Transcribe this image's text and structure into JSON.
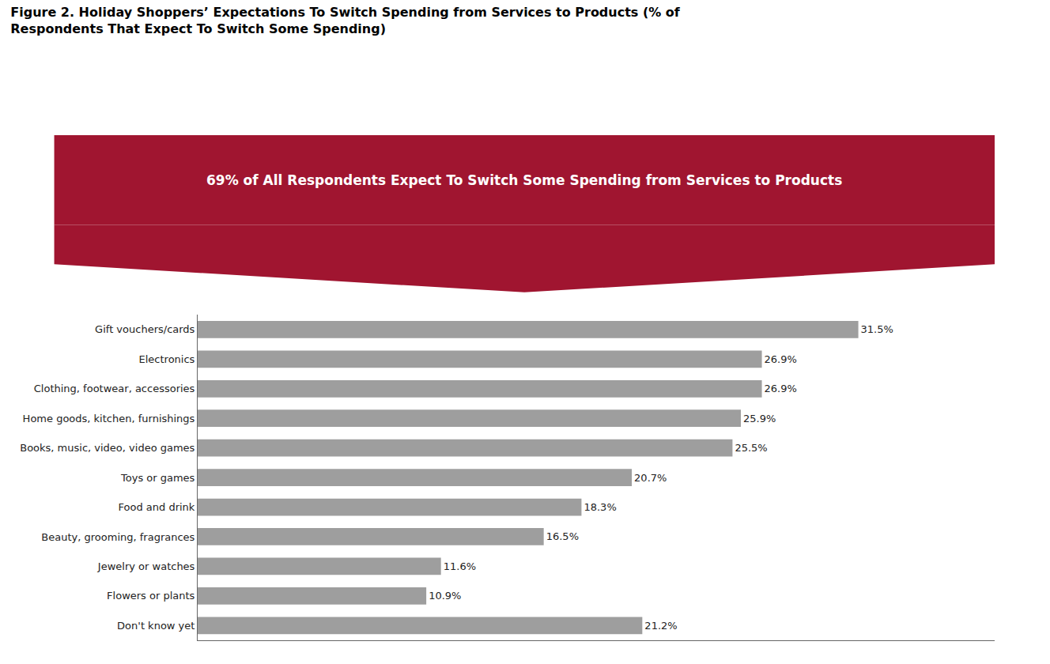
{
  "chart_data": {
    "type": "bar",
    "orientation": "horizontal",
    "title": "Figure 2. Holiday Shoppers’ Expectations To Switch Spending from Services to Products (% of Respondents That Expect To Switch Some Spending)",
    "categories": [
      "Gift vouchers/cards",
      "Electronics",
      "Clothing, footwear, accessories",
      "Home goods, kitchen, furnishings",
      "Books, music, video, video games",
      "Toys or games",
      "Food and drink",
      "Beauty, grooming, fragrances",
      "Jewelry or watches",
      "Flowers or plants",
      "Don't know yet"
    ],
    "values": [
      31.5,
      26.9,
      26.9,
      25.9,
      25.5,
      20.7,
      18.3,
      16.5,
      11.6,
      10.9,
      21.2
    ],
    "value_labels": [
      "31.5%",
      "26.9%",
      "26.9%",
      "25.9%",
      "25.5%",
      "20.7%",
      "18.3%",
      "16.5%",
      "11.6%",
      "10.9%",
      "21.2%"
    ],
    "data_labels": true,
    "color": "#9E9E9E",
    "xlim": [
      0,
      38
    ],
    "grid": false,
    "tick_labels": "y",
    "annotations": [
      {
        "text": "69% of All Respondents Expect To Switch Some Spending from Services to Products",
        "color": "#A01530"
      }
    ]
  }
}
